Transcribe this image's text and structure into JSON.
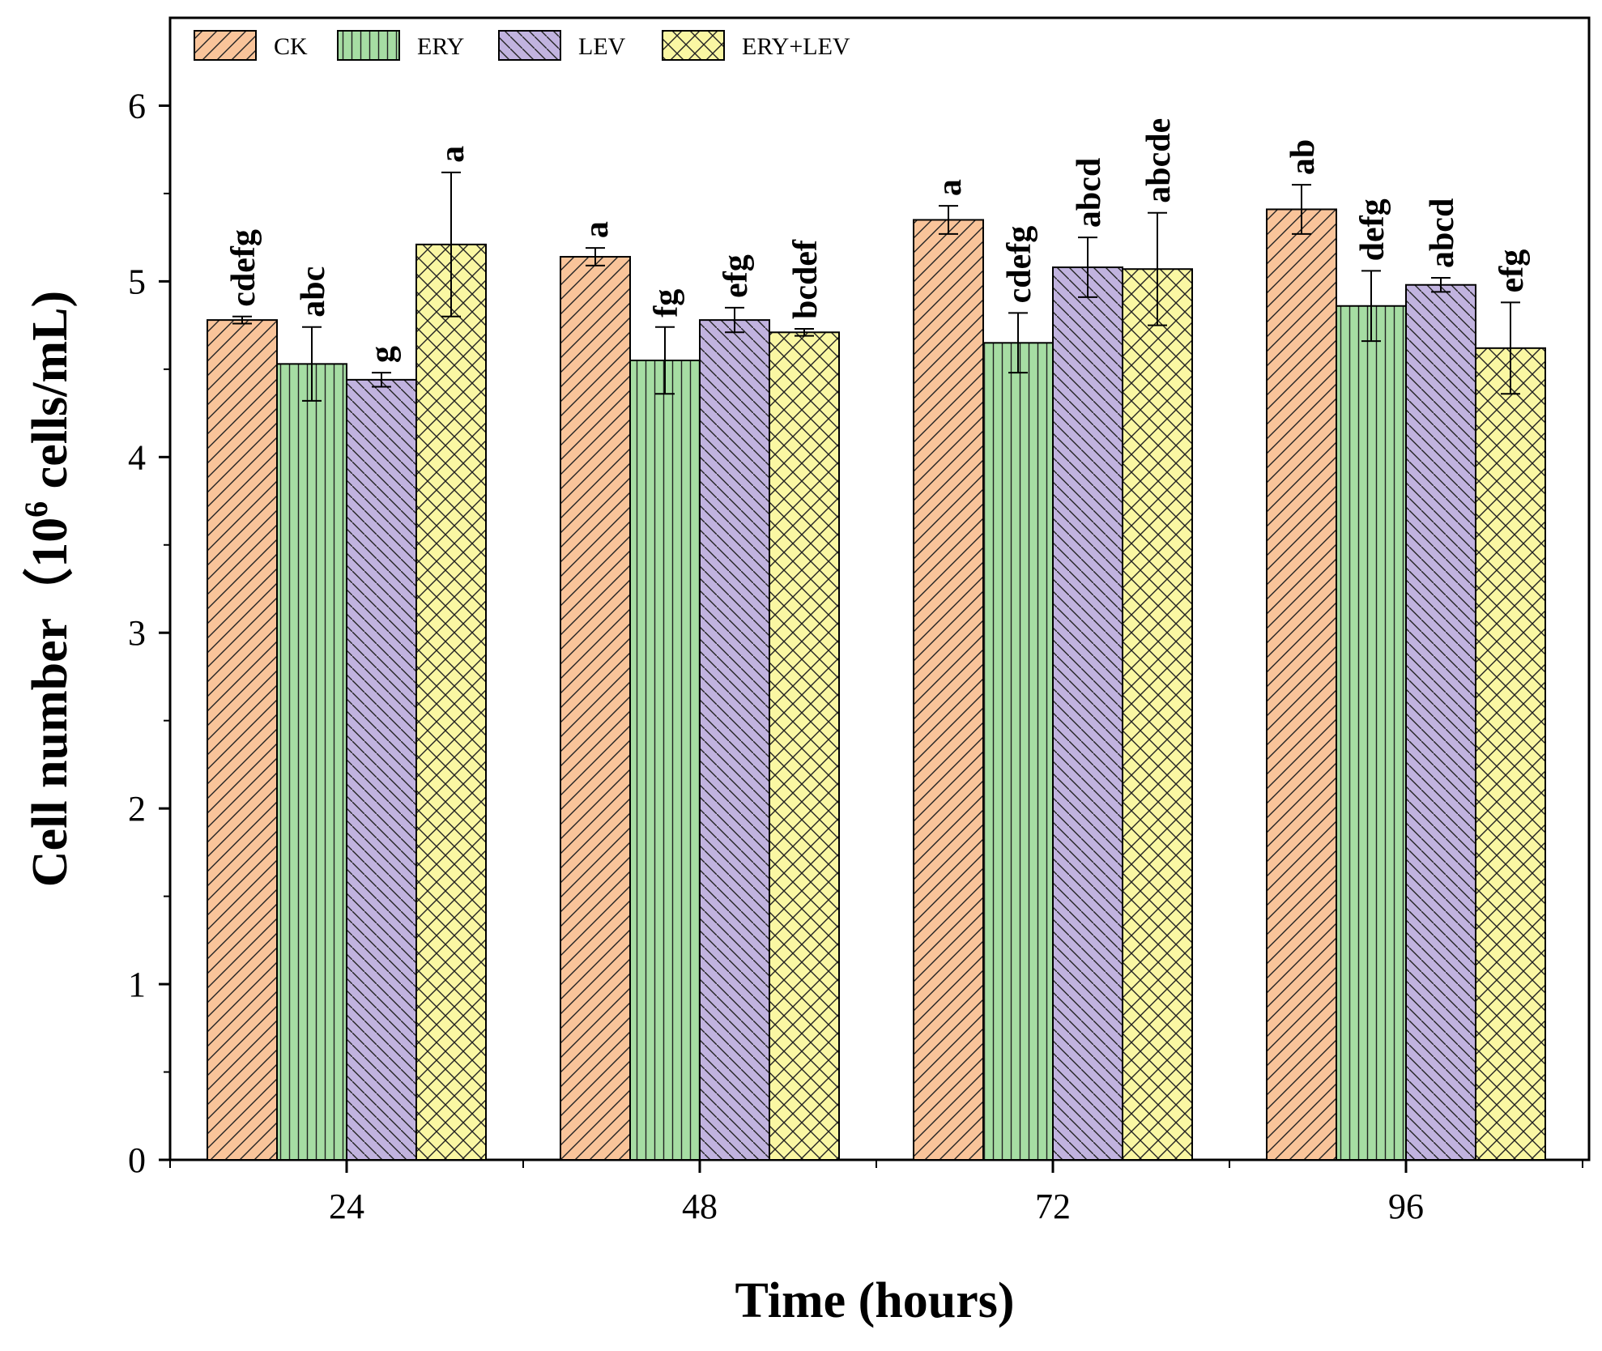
{
  "chart_data": {
    "type": "bar",
    "xlabel": "Time (hours)",
    "ylabel_main": "Cell number",
    "ylabel_unit_prefix": "（10",
    "ylabel_unit_sup": "6",
    "ylabel_unit_suffix": " cells/mL)",
    "categories": [
      "24",
      "48",
      "72",
      "96"
    ],
    "ylim": [
      0,
      6.5
    ],
    "yticks": [
      0,
      1,
      2,
      3,
      4,
      5,
      6
    ],
    "ytick_labels": [
      "0",
      "1",
      "2",
      "3",
      "4",
      "5",
      "6"
    ],
    "legend_position": "top-left",
    "series": [
      {
        "name": "CK",
        "color": "#F9C49A",
        "pattern": "diagonal-forward",
        "values": [
          4.78,
          5.14,
          5.35,
          5.41
        ],
        "errors": [
          0.02,
          0.05,
          0.08,
          0.14
        ],
        "labels": [
          "cdefg",
          "a",
          "a",
          "ab"
        ]
      },
      {
        "name": "ERY",
        "color": "#A6DDA3",
        "pattern": "vertical",
        "values": [
          4.53,
          4.55,
          4.65,
          4.86
        ],
        "errors": [
          0.21,
          0.19,
          0.17,
          0.2
        ],
        "labels": [
          "abc",
          "fg",
          "cdefg",
          "defg"
        ]
      },
      {
        "name": "LEV",
        "color": "#C1B3DF",
        "pattern": "diagonal-back",
        "values": [
          4.44,
          4.78,
          5.08,
          4.98
        ],
        "errors": [
          0.04,
          0.07,
          0.17,
          0.04
        ],
        "labels": [
          "g",
          "efg",
          "abcd",
          "abcd"
        ]
      },
      {
        "name": "ERY+LEV",
        "color": "#FAF7A3",
        "pattern": "crosshatch",
        "values": [
          5.21,
          4.71,
          5.07,
          4.62
        ],
        "errors": [
          0.41,
          0.02,
          0.32,
          0.26
        ],
        "labels": [
          "a",
          "bcdef",
          "abcde",
          "efg"
        ]
      }
    ]
  }
}
